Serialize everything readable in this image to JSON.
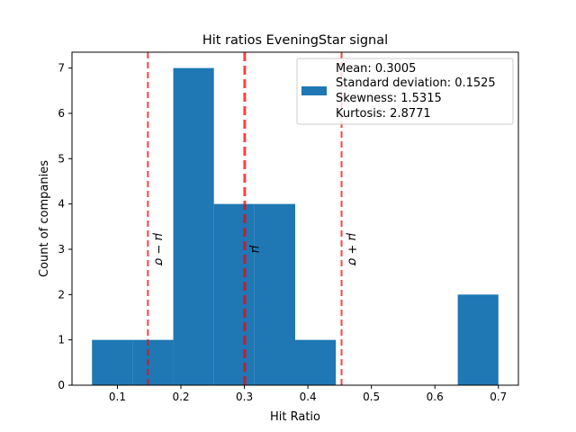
{
  "chart_data": {
    "type": "bar",
    "title": "Hit ratios EveningStar signal",
    "xlabel": "Hit Ratio",
    "ylabel": "Count of companies",
    "xlim": [
      0.0285,
      0.7315
    ],
    "ylim": [
      0,
      7.35
    ],
    "xticks": [
      0.1,
      0.2,
      0.3,
      0.4,
      0.5,
      0.6,
      0.7
    ],
    "xtick_labels": [
      "0.1",
      "0.2",
      "0.3",
      "0.4",
      "0.5",
      "0.6",
      "0.7"
    ],
    "yticks": [
      0,
      1,
      2,
      3,
      4,
      5,
      6,
      7
    ],
    "ytick_labels": [
      "0",
      "1",
      "2",
      "3",
      "4",
      "5",
      "6",
      "7"
    ],
    "bar_color": "#1f77b4",
    "bins": [
      {
        "x0": 0.06,
        "x1": 0.124,
        "count": 1
      },
      {
        "x0": 0.124,
        "x1": 0.188,
        "count": 1
      },
      {
        "x0": 0.188,
        "x1": 0.252,
        "count": 7
      },
      {
        "x0": 0.252,
        "x1": 0.316,
        "count": 4
      },
      {
        "x0": 0.316,
        "x1": 0.38,
        "count": 4
      },
      {
        "x0": 0.38,
        "x1": 0.444,
        "count": 1
      },
      {
        "x0": 0.444,
        "x1": 0.508,
        "count": 0
      },
      {
        "x0": 0.508,
        "x1": 0.572,
        "count": 0
      },
      {
        "x0": 0.572,
        "x1": 0.636,
        "count": 0
      },
      {
        "x0": 0.636,
        "x1": 0.7,
        "count": 2
      }
    ],
    "reference_lines": [
      {
        "label": "μ − σ",
        "x": 0.148,
        "color": "#ff0000",
        "style": "dashed"
      },
      {
        "label": "μ",
        "x": 0.3005,
        "color": "#ff0000",
        "style": "dashed",
        "emphasis": true
      },
      {
        "label": "μ + σ",
        "x": 0.453,
        "color": "#ff0000",
        "style": "dashed"
      }
    ],
    "legend": {
      "placement": "top-right",
      "entries": [
        "Mean: 0.3005",
        "Standard deviation: 0.1525",
        "Skewness: 1.5315",
        "Kurtosis: 2.8771"
      ]
    },
    "grid": false
  }
}
